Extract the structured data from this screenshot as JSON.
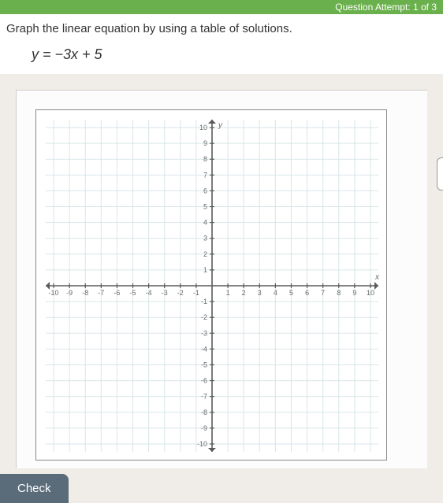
{
  "header": {
    "attempt_text": "Question Attempt: 1 of 3"
  },
  "question": {
    "prompt": "Graph the linear equation by using a table of solutions.",
    "equation": "y = −3x + 5"
  },
  "chart": {
    "type": "scatter",
    "xlim": [
      -10.5,
      10.5
    ],
    "ylim": [
      -10.5,
      10.5
    ],
    "xtick_step": 1,
    "ytick_step": 1,
    "x_labels_neg": [
      "-10",
      "-9",
      "-8",
      "-7",
      "-6",
      "-5",
      "-4",
      "-3",
      "-2",
      "-1"
    ],
    "x_labels_pos": [
      "1",
      "2",
      "3",
      "4",
      "5",
      "6",
      "7",
      "8",
      "9",
      "10"
    ],
    "y_labels_neg": [
      "-1",
      "-2",
      "-3",
      "-4",
      "-5",
      "-6",
      "-7",
      "-8",
      "-9",
      "-10"
    ],
    "y_labels_pos": [
      "1",
      "2",
      "3",
      "4",
      "5",
      "6",
      "7",
      "8",
      "9",
      "10"
    ],
    "grid_color": "#d9e6e8",
    "axis_color": "#5a5a5a",
    "label_color": "#6b6b6b",
    "label_fontsize": 9,
    "axis_label_fontsize": 10,
    "background_color": "#ffffff",
    "x_axis_name": "x",
    "y_axis_name": "y"
  },
  "buttons": {
    "check": "Check"
  }
}
